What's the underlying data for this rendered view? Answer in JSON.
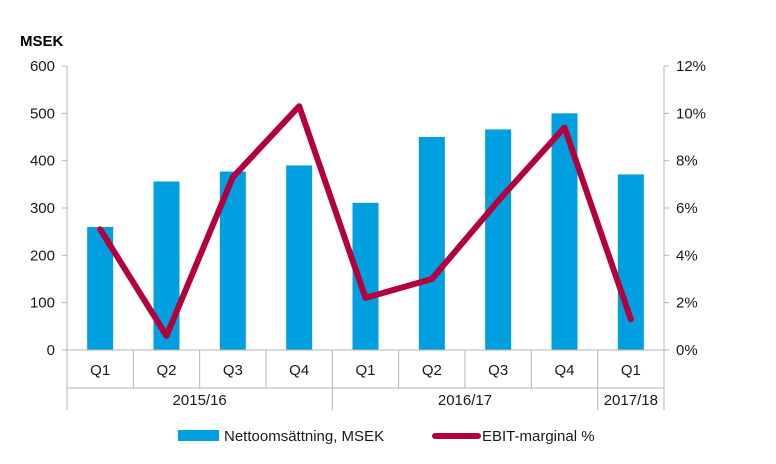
{
  "chart_data": {
    "type": "bar+line",
    "y_unit_label": "MSEK",
    "categories": [
      "Q1",
      "Q2",
      "Q3",
      "Q4",
      "Q1",
      "Q2",
      "Q3",
      "Q4",
      "Q1"
    ],
    "groups": [
      {
        "label": "2015/16",
        "count": 4
      },
      {
        "label": "2016/17",
        "count": 4
      },
      {
        "label": "2017/18",
        "count": 1
      }
    ],
    "series": [
      {
        "name": "Nettoomsättning, MSEK",
        "kind": "bar",
        "axis": "left",
        "color": "#009FDF",
        "values": [
          260,
          356,
          377,
          390,
          311,
          450,
          466,
          500,
          371
        ]
      },
      {
        "name": "EBIT-marginal %",
        "kind": "line",
        "axis": "right",
        "color": "#B5003E",
        "values": [
          5.1,
          0.6,
          7.3,
          10.3,
          2.2,
          3.0,
          6.3,
          9.4,
          1.3
        ]
      }
    ],
    "y_left": {
      "min": 0,
      "max": 600,
      "ticks": [
        "0",
        "100",
        "200",
        "300",
        "400",
        "500",
        "600"
      ]
    },
    "y_right": {
      "min": 0,
      "max": 12,
      "ticks": [
        "0%",
        "2%",
        "4%",
        "6%",
        "8%",
        "10%",
        "12%"
      ]
    },
    "grid": false,
    "legend_position": "bottom"
  }
}
